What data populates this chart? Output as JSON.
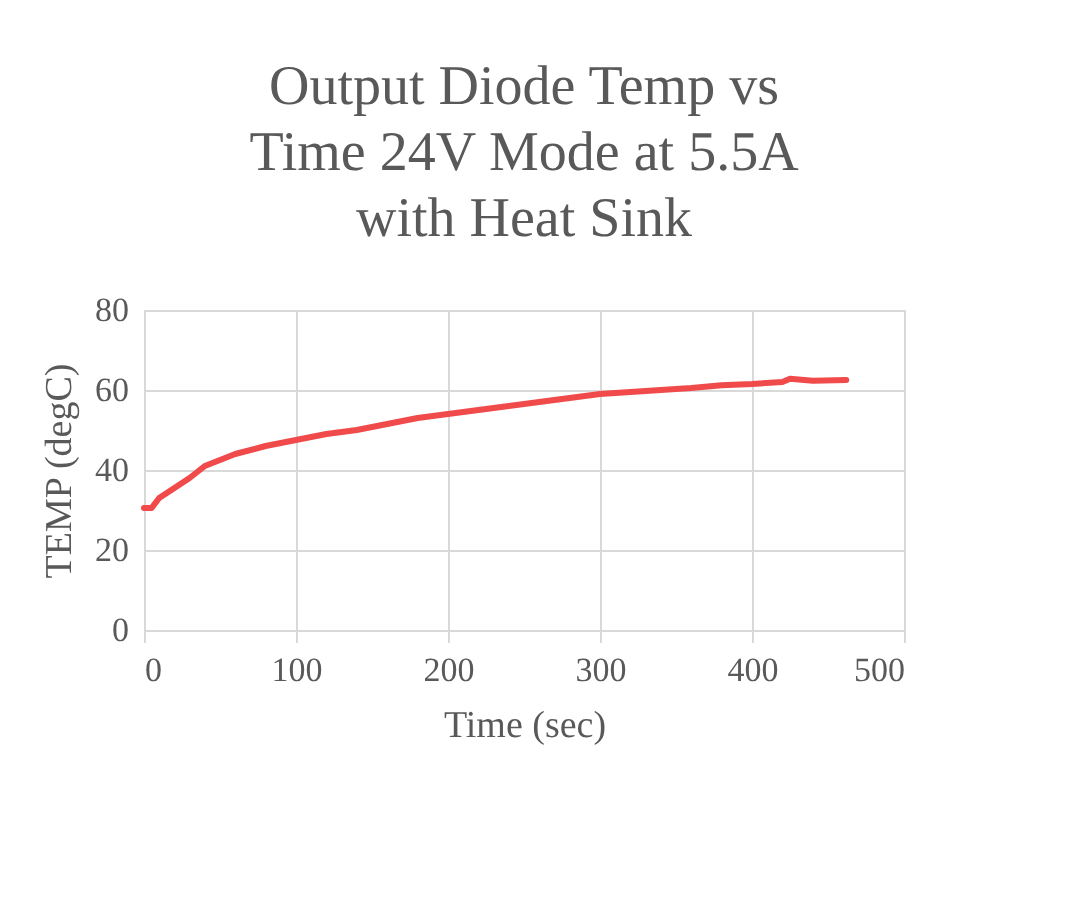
{
  "chart_data": {
    "type": "line",
    "title": [
      "Output Diode Temp vs",
      "Time  24V Mode at 5.5A",
      "with Heat Sink"
    ],
    "xlabel": "Time (sec)",
    "ylabel": "TEMP (degC)",
    "x": [
      0,
      5,
      10,
      20,
      30,
      40,
      50,
      60,
      80,
      100,
      120,
      140,
      160,
      180,
      200,
      220,
      240,
      260,
      280,
      300,
      320,
      340,
      360,
      380,
      400,
      420,
      425,
      440,
      462
    ],
    "series": [
      {
        "color": "#f04a4a",
        "values": [
          30.5,
          30.5,
          33,
          35.5,
          38,
          41,
          42.5,
          44,
          46,
          47.5,
          49,
          50,
          51.5,
          53,
          54,
          55,
          56,
          57,
          58,
          59,
          59.5,
          60,
          60.5,
          61.2,
          61.5,
          62,
          62.8,
          62.3,
          62.5
        ]
      }
    ],
    "xlim": [
      0,
      500
    ],
    "xticks": [
      0,
      100,
      200,
      300,
      400,
      500
    ],
    "ylim": [
      0,
      80
    ],
    "yticks": [
      0,
      20,
      40,
      60,
      80
    ],
    "grid": true,
    "marker": "none",
    "line_style": "solid"
  }
}
